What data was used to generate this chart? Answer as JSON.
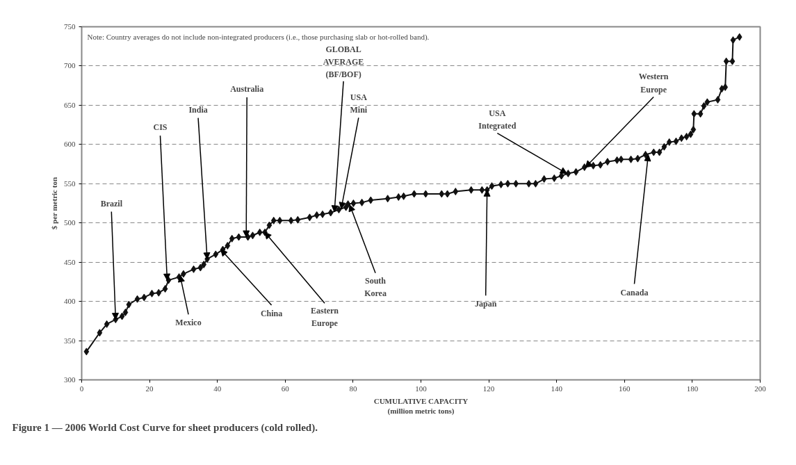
{
  "chart_data": {
    "type": "line",
    "title": "Figure 1 — 2006 World Cost Curve for sheet producers (cold rolled).",
    "xlabel": "CUMULATIVE CAPACITY\n(million metric tons)",
    "ylabel": "$ per metric ton",
    "xlim": [
      0,
      200
    ],
    "xticks": [
      0,
      20,
      40,
      60,
      80,
      100,
      120,
      140,
      160,
      180,
      200
    ],
    "ylim": [
      300,
      750
    ],
    "yticks": [
      300,
      350,
      400,
      450,
      500,
      550,
      600,
      650,
      700,
      750
    ],
    "grid": "y",
    "marker": "diamond",
    "line_style": "solid",
    "series": [
      {
        "color": "#111111",
        "x": [
          1.4,
          5.3,
          7.4,
          10,
          11.9,
          12.9,
          13.9,
          16.4,
          18.4,
          20.7,
          22.7,
          24.6,
          25.6,
          28.7,
          30,
          33,
          35,
          36,
          37,
          39.5,
          41.6,
          43,
          44.3,
          46.3,
          49,
          50.4,
          52.5,
          54,
          55.3,
          56.6,
          58.4,
          61.7,
          63.7,
          67.2,
          69.3,
          71,
          73.4,
          75.8,
          77.9,
          78.5,
          80.1,
          82.6,
          85.2,
          90.2,
          93.4,
          94.9,
          98,
          101.4,
          106.1,
          107.8,
          110.2,
          114.8,
          118,
          119.5,
          120.9,
          123.6,
          125.6,
          128,
          131.8,
          133.8,
          136.3,
          139.3,
          141.4,
          143.4,
          145.7,
          148.2,
          150.8,
          152.9,
          155,
          157.8,
          159,
          161.9,
          163.9,
          166.2,
          168.6,
          170.3,
          171.7,
          173.2,
          175.2,
          176.8,
          178.3,
          179.5,
          180.3,
          180.5,
          182.4,
          183.4,
          184.4,
          187.5,
          188.7,
          189.7,
          190,
          191.8,
          192,
          193.9
        ],
        "values": [
          336,
          360,
          371,
          377,
          381,
          386,
          396,
          403,
          405,
          410,
          411,
          416,
          427,
          431,
          435,
          441,
          443,
          447,
          454,
          460,
          466,
          471,
          480,
          482,
          482,
          484,
          488,
          488,
          497,
          503,
          503,
          503,
          504,
          507,
          510,
          511,
          513,
          517,
          520,
          524,
          525,
          526,
          529,
          531,
          533,
          534,
          537,
          537,
          537,
          537,
          540,
          542,
          542,
          542,
          547,
          549,
          550,
          550,
          550,
          550,
          556,
          557,
          560,
          563,
          565,
          571,
          573,
          574,
          578,
          580,
          581,
          581,
          582,
          587,
          590,
          590,
          597,
          603,
          604,
          608,
          610,
          613,
          619,
          639,
          639,
          649,
          654,
          657,
          671,
          673,
          706,
          706,
          733,
          737
        ]
      }
    ],
    "annotations": [
      "Note:  Country averages do not include non-integrated producers (i.e., those purchasing slab or hot-rolled band).",
      {
        "text": "Brazil",
        "x": 10,
        "y": 377
      },
      {
        "text": "CIS",
        "x": 25.2,
        "y": 427
      },
      {
        "text": "India",
        "x": 37,
        "y": 454
      },
      {
        "text": "Australia",
        "x": 48.5,
        "y": 482
      },
      {
        "text": "GLOBAL\nAVERAGE\n(BF/BOF)",
        "x": 74.5,
        "y": 514
      },
      {
        "text": "USA\nMini",
        "x": 76.5,
        "y": 518
      },
      {
        "text": "USA\nIntegrated",
        "x": 143,
        "y": 563
      },
      {
        "text": "Western\nEurope",
        "x": 148.5,
        "y": 571
      },
      {
        "text": "Canada",
        "x": 167,
        "y": 587
      },
      {
        "text": "Japan",
        "x": 119.5,
        "y": 542
      },
      {
        "text": "South\nKorea",
        "x": 79,
        "y": 523
      },
      {
        "text": "Eastern\nEurope",
        "x": 54,
        "y": 488
      },
      {
        "text": "China",
        "x": 41,
        "y": 466
      },
      {
        "text": "Mexico",
        "x": 29,
        "y": 433
      }
    ]
  }
}
